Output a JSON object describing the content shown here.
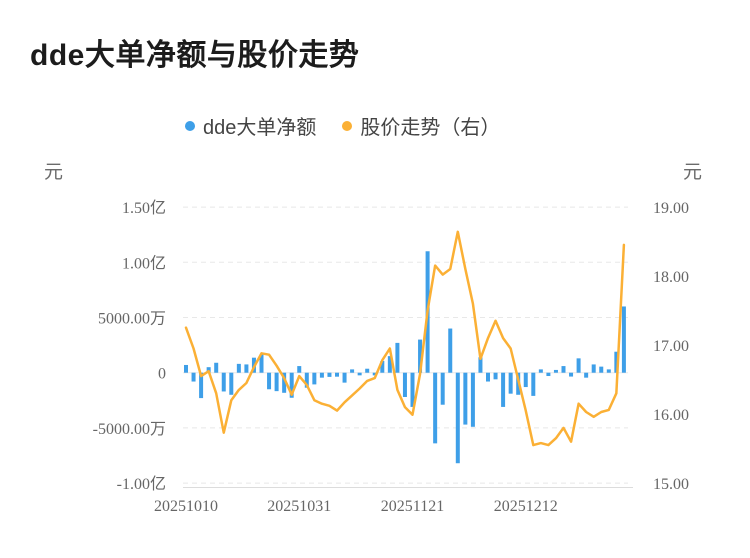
{
  "title": "dde大单净额与股价走势",
  "legend": {
    "items": [
      {
        "label": "dde大单净额",
        "color": "#3E9FE8"
      },
      {
        "label": "股价走势（右）",
        "color": "#FBB035"
      }
    ]
  },
  "chart_data": {
    "type": "combo",
    "title": "dde大单净额与股价走势",
    "grid": "horizontal dashed",
    "legend_position": "top-center",
    "x_axis": {
      "tick_labels": [
        "20251010",
        "20251031",
        "20251121",
        "20251212"
      ],
      "tick_indices": [
        0,
        15,
        30,
        45
      ],
      "points": 59
    },
    "left_axis": {
      "unit": "元",
      "ticks": [
        {
          "label": "1.50亿",
          "value": 15000
        },
        {
          "label": "1.00亿",
          "value": 10000
        },
        {
          "label": "5000.00万",
          "value": 5000
        },
        {
          "label": "0",
          "value": 0
        },
        {
          "label": "-5000.00万",
          "value": -5000
        },
        {
          "label": "-1.00亿",
          "value": -10000
        }
      ]
    },
    "right_axis": {
      "unit": "元",
      "range": [
        15.0,
        19.0
      ],
      "ticks": [
        {
          "label": "19.00",
          "value": 19.0
        },
        {
          "label": "18.00",
          "value": 18.0
        },
        {
          "label": "17.00",
          "value": 17.0
        },
        {
          "label": "16.00",
          "value": 16.0
        },
        {
          "label": "15.00",
          "value": 15.0
        }
      ]
    },
    "series": [
      {
        "name": "dde大单净额",
        "type": "bar",
        "axis": "left",
        "unit": "万元",
        "color": "#3E9FE8",
        "values": [
          700,
          -800,
          -2300,
          500,
          900,
          -1700,
          -2000,
          800,
          750,
          1360,
          1670,
          -1500,
          -1670,
          -1820,
          -2270,
          600,
          -1360,
          -1060,
          -450,
          -380,
          -360,
          -900,
          300,
          -240,
          360,
          -240,
          1060,
          1500,
          2700,
          -2200,
          -3100,
          3000,
          11000,
          -6400,
          -2900,
          4000,
          -8200,
          -4700,
          -4900,
          1400,
          -800,
          -600,
          -3100,
          -1900,
          -2000,
          -1300,
          -2100,
          300,
          -300,
          250,
          600,
          -350,
          1300,
          -450,
          750,
          550,
          300,
          1900,
          6000
        ]
      },
      {
        "name": "股价走势（右）",
        "type": "line",
        "axis": "right",
        "unit": "元",
        "color": "#FBB035",
        "values": [
          17.25,
          16.95,
          16.55,
          16.62,
          16.3,
          15.73,
          16.2,
          16.35,
          16.45,
          16.68,
          16.88,
          16.86,
          16.7,
          16.52,
          16.28,
          16.55,
          16.42,
          16.2,
          16.15,
          16.12,
          16.05,
          16.17,
          16.27,
          16.37,
          16.48,
          16.52,
          16.78,
          16.95,
          16.35,
          16.1,
          15.99,
          16.58,
          17.5,
          18.15,
          18.02,
          18.1,
          18.64,
          18.1,
          17.6,
          16.8,
          17.1,
          17.35,
          17.1,
          16.95,
          16.5,
          16.05,
          15.55,
          15.58,
          15.55,
          15.65,
          15.8,
          15.6,
          16.15,
          16.03,
          15.96,
          16.03,
          16.06,
          16.3,
          18.45
        ]
      }
    ]
  }
}
